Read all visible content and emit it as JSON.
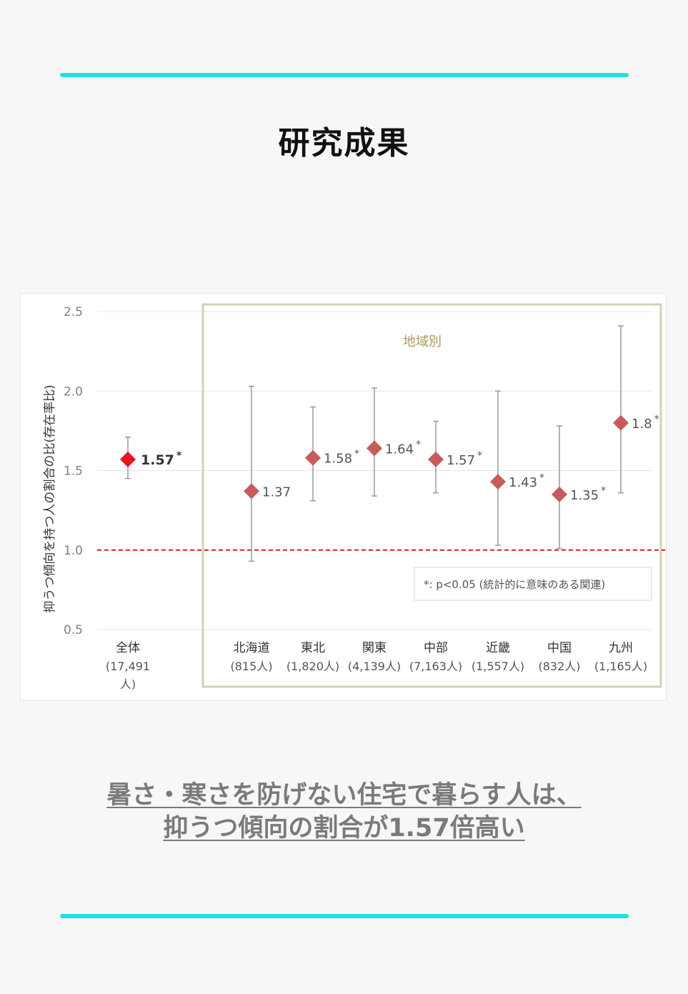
{
  "page": {
    "title": "研究成果",
    "caption_line1": "暑さ・寒さを防げない住宅で暮らす人は、",
    "caption_line2": "抑うつ傾向の割合が1.57倍高い",
    "accent_color": "#1ee0ea"
  },
  "chart_data": {
    "type": "scatter",
    "ylabel": "抑うつ傾向を持つ人の割合の比(存在率比)",
    "ylim": [
      0.5,
      2.5
    ],
    "yticks": [
      "0.5",
      "1.0",
      "1.5",
      "2.0",
      "2.5"
    ],
    "reference_line": 1.0,
    "group_label": "地域別",
    "legend_note": "*: p<0.05 (統計的に意味のある関連)",
    "grid": true,
    "points": [
      {
        "name": "全体",
        "count": "(17,491",
        "count2": "人)",
        "value": 1.57,
        "low": 1.45,
        "high": 1.71,
        "label": "1.57",
        "sig": "*",
        "highlight": true
      },
      {
        "name": "北海道",
        "count": "(815人)",
        "value": 1.37,
        "low": 0.93,
        "high": 2.03,
        "label": "1.37",
        "sig": ""
      },
      {
        "name": "東北",
        "count": "(1,820人)",
        "value": 1.58,
        "low": 1.31,
        "high": 1.9,
        "label": "1.58",
        "sig": "*"
      },
      {
        "name": "関東",
        "count": "(4,139人)",
        "value": 1.64,
        "low": 1.34,
        "high": 2.02,
        "label": "1.64",
        "sig": "*"
      },
      {
        "name": "中部",
        "count": "(7,163人)",
        "value": 1.57,
        "low": 1.36,
        "high": 1.81,
        "label": "1.57",
        "sig": "*"
      },
      {
        "name": "近畿",
        "count": "(1,557人)",
        "value": 1.43,
        "low": 1.03,
        "high": 2.0,
        "label": "1.43",
        "sig": "*"
      },
      {
        "name": "中国",
        "count": "(832人)",
        "value": 1.35,
        "low": 1.01,
        "high": 1.78,
        "label": "1.35",
        "sig": "*"
      },
      {
        "name": "九州",
        "count": "(1,165人)",
        "value": 1.8,
        "low": 1.36,
        "high": 2.41,
        "label": "1.8",
        "sig": "*"
      }
    ],
    "colors": {
      "highlight": "#e8141e",
      "marker": "#c75b5b",
      "whisker": "#9a9a9a",
      "reference": "#d62020",
      "group_border": "#d6d0b4",
      "group_label": "#a89a58",
      "axis_text": "#7f7f7f",
      "grid": "#e6e6e6"
    }
  }
}
